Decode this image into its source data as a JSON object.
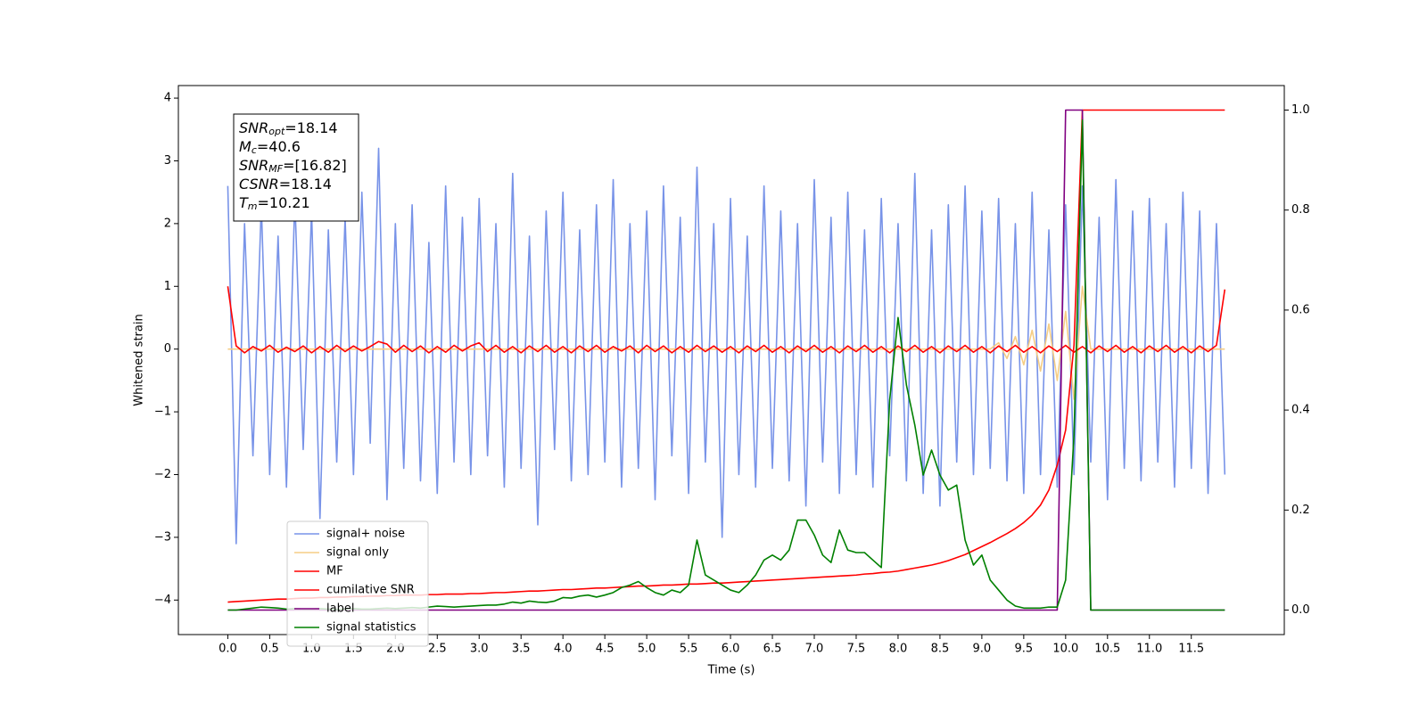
{
  "chart_data": {
    "type": "line",
    "xlabel": "Time (s)",
    "ylabel": "Whitened strain",
    "xlim": [
      -0.59,
      12.61
    ],
    "ylim": [
      -4.55,
      4.2
    ],
    "y2lim": [
      -0.049,
      1.049
    ],
    "xticks": [
      {
        "value": 0,
        "label": "0.0"
      },
      0.5,
      {
        "value": 1,
        "label": "1.0"
      },
      1.5,
      {
        "value": 2,
        "label": "2.0"
      },
      2.5,
      {
        "value": 3,
        "label": "3.0"
      },
      3.5,
      {
        "value": 4,
        "label": "4.0"
      },
      4.5,
      {
        "value": 5,
        "label": "5.0"
      },
      5.5,
      {
        "value": 6,
        "label": "6.0"
      },
      6.5,
      {
        "value": 7,
        "label": "7.0"
      },
      7.5,
      {
        "value": 8,
        "label": "8.0"
      },
      8.5,
      {
        "value": 9,
        "label": "9.0"
      },
      9.5,
      {
        "value": 10,
        "label": "10.0"
      },
      10.5,
      {
        "value": 11,
        "label": "11.0"
      },
      11.5
    ],
    "yticks": [
      {
        "value": -4,
        "label": "−4"
      },
      {
        "value": -3,
        "label": "−3"
      },
      {
        "value": -2,
        "label": "−2"
      },
      {
        "value": -1,
        "label": "−1"
      },
      0,
      1,
      2,
      3,
      4
    ],
    "y2ticks": [
      {
        "value": 0,
        "label": "0.0"
      },
      0.2,
      0.4,
      0.6,
      0.8,
      {
        "value": 1,
        "label": "1.0"
      }
    ],
    "grid": false,
    "legend": "lower left",
    "annotations": [
      {
        "symbol": "SNR",
        "subscript": "opt",
        "text": "=18.14"
      },
      {
        "symbol": "M",
        "subscript": "c",
        "text": "=40.6"
      },
      {
        "symbol": "SNR",
        "subscript": "MF",
        "text": "=[16.82]"
      },
      {
        "symbol": "CSNR",
        "text": "=18.14"
      },
      {
        "symbol": "T",
        "subscript": "m",
        "text": "=10.21"
      }
    ],
    "x": [
      0,
      0.1,
      0.2,
      0.3,
      0.4,
      0.5,
      0.6,
      0.7,
      0.8,
      0.9,
      1,
      1.1,
      1.2,
      1.3,
      1.4,
      1.5,
      1.6,
      1.7,
      1.8,
      1.9,
      2,
      2.1,
      2.2,
      2.3,
      2.4,
      2.5,
      2.6,
      2.7,
      2.8,
      2.9,
      3,
      3.1,
      3.2,
      3.3,
      3.4,
      3.5,
      3.6,
      3.7,
      3.8,
      3.9,
      4,
      4.1,
      4.2,
      4.3,
      4.4,
      4.5,
      4.6,
      4.7,
      4.8,
      4.9,
      5,
      5.1,
      5.2,
      5.3,
      5.4,
      5.5,
      5.6,
      5.7,
      5.8,
      5.9,
      6,
      6.1,
      6.2,
      6.3,
      6.4,
      6.5,
      6.6,
      6.7,
      6.8,
      6.9,
      7,
      7.1,
      7.2,
      7.3,
      7.4,
      7.5,
      7.6,
      7.7,
      7.8,
      7.9,
      8,
      8.1,
      8.2,
      8.3,
      8.4,
      8.5,
      8.6,
      8.7,
      8.8,
      8.9,
      9,
      9.1,
      9.2,
      9.3,
      9.4,
      9.5,
      9.6,
      9.7,
      9.8,
      9.9,
      10,
      10.1,
      10.2,
      10.3,
      10.4,
      10.5,
      10.6,
      10.7,
      10.8,
      10.9,
      11,
      11.1,
      11.2,
      11.3,
      11.4,
      11.5,
      11.6,
      11.7,
      11.8,
      11.9
    ],
    "series": [
      {
        "name": "signal+ noise",
        "color": "#7893e8",
        "values": [
          2.6,
          -3.1,
          2.0,
          -1.7,
          2.3,
          -2.0,
          1.8,
          -2.2,
          2.4,
          -1.6,
          2.2,
          -2.7,
          1.9,
          -1.8,
          2.1,
          -2.0,
          2.5,
          -1.5,
          3.2,
          -2.4,
          2.0,
          -1.9,
          2.3,
          -2.1,
          1.7,
          -2.3,
          2.6,
          -1.8,
          2.1,
          -2.0,
          2.4,
          -1.7,
          2.0,
          -2.2,
          2.8,
          -1.9,
          1.8,
          -2.8,
          2.2,
          -1.6,
          2.5,
          -2.1,
          1.9,
          -2.0,
          2.3,
          -1.8,
          2.7,
          -2.2,
          2.0,
          -1.9,
          2.2,
          -2.4,
          2.6,
          -1.7,
          2.1,
          -2.3,
          2.9,
          -1.8,
          2.0,
          -3.0,
          2.4,
          -2.0,
          1.8,
          -2.2,
          2.6,
          -1.9,
          2.2,
          -2.1,
          2.0,
          -2.5,
          2.7,
          -1.8,
          2.1,
          -2.3,
          2.5,
          -2.0,
          1.9,
          -2.2,
          2.4,
          -1.7,
          2.0,
          -2.1,
          2.8,
          -2.3,
          1.9,
          -2.5,
          2.3,
          -1.8,
          2.6,
          -2.0,
          2.2,
          -1.9,
          2.4,
          -2.1,
          2.0,
          -2.3,
          2.5,
          -2.0,
          1.9,
          -2.2,
          2.3,
          -2.0,
          2.6,
          -1.8,
          2.1,
          -2.4,
          2.7,
          -1.9,
          2.2,
          -2.1,
          2.4,
          -1.8,
          2.0,
          -2.2,
          2.5,
          -1.9,
          2.2,
          -2.3,
          2.0,
          -2.0
        ]
      },
      {
        "name": "signal only",
        "color": "#f5cd85",
        "values": [
          0,
          0,
          0,
          0,
          0,
          0,
          0,
          0,
          0,
          0,
          0,
          0,
          0,
          0,
          0,
          0,
          0,
          0,
          0,
          0,
          0,
          0,
          0,
          0,
          0,
          0,
          0,
          0,
          0,
          0,
          0,
          0,
          0,
          0,
          0,
          0,
          0,
          0,
          0,
          0,
          0,
          0,
          0,
          0,
          0,
          0,
          0,
          0,
          0,
          0,
          0,
          0,
          0,
          0,
          0,
          0,
          0,
          0,
          0,
          0,
          0,
          0,
          0,
          0,
          0,
          0,
          0,
          0,
          0,
          0,
          0,
          0,
          0,
          0,
          0,
          0,
          0,
          0,
          0,
          0,
          0,
          0,
          0,
          0,
          0,
          0,
          0,
          0,
          0,
          0,
          0,
          0,
          0.1,
          -0.15,
          0.2,
          -0.25,
          0.3,
          -0.35,
          0.4,
          -0.5,
          0.6,
          -0.8,
          1.0,
          0,
          0,
          0,
          0,
          0,
          0,
          0,
          0,
          0,
          0,
          0,
          0,
          0,
          0,
          0,
          0,
          0
        ]
      },
      {
        "name": "MF",
        "color": "#ff0000",
        "values": [
          1.0,
          0.05,
          -0.06,
          0.04,
          -0.03,
          0.06,
          -0.05,
          0.03,
          -0.04,
          0.05,
          -0.06,
          0.04,
          -0.05,
          0.06,
          -0.04,
          0.05,
          -0.03,
          0.04,
          0.12,
          0.08,
          -0.05,
          0.06,
          -0.04,
          0.05,
          -0.06,
          0.04,
          -0.05,
          0.06,
          -0.03,
          0.05,
          0.1,
          -0.04,
          0.06,
          -0.05,
          0.04,
          -0.06,
          0.05,
          -0.04,
          0.06,
          -0.05,
          0.04,
          -0.06,
          0.05,
          -0.04,
          0.06,
          -0.05,
          0.04,
          -0.03,
          0.05,
          -0.06,
          0.06,
          -0.04,
          0.05,
          -0.06,
          0.04,
          -0.05,
          0.06,
          -0.04,
          0.05,
          -0.05,
          0.04,
          -0.06,
          0.05,
          -0.04,
          0.06,
          -0.05,
          0.04,
          -0.06,
          0.05,
          -0.04,
          0.06,
          -0.05,
          0.04,
          -0.06,
          0.05,
          -0.04,
          0.06,
          -0.05,
          0.04,
          -0.06,
          0.05,
          -0.04,
          0.06,
          -0.05,
          0.04,
          -0.06,
          0.05,
          -0.04,
          0.06,
          -0.05,
          0.04,
          -0.06,
          0.05,
          -0.04,
          0.06,
          -0.05,
          0.04,
          -0.06,
          0.05,
          -0.04,
          0.06,
          -0.05,
          0.04,
          -0.06,
          0.05,
          -0.04,
          0.06,
          -0.05,
          0.04,
          -0.06,
          0.05,
          -0.04,
          0.06,
          -0.05,
          0.04,
          -0.06,
          0.05,
          -0.04,
          0.06,
          0.95
        ]
      },
      {
        "name": "cumilative SNR",
        "color": "#ff0000",
        "axis": "y2",
        "values": [
          0.016,
          0.017,
          0.018,
          0.019,
          0.02,
          0.021,
          0.022,
          0.022,
          0.023,
          0.024,
          0.024,
          0.025,
          0.025,
          0.026,
          0.026,
          0.027,
          0.027,
          0.028,
          0.028,
          0.029,
          0.029,
          0.03,
          0.03,
          0.03,
          0.031,
          0.031,
          0.032,
          0.032,
          0.032,
          0.033,
          0.033,
          0.034,
          0.035,
          0.035,
          0.036,
          0.037,
          0.038,
          0.038,
          0.039,
          0.04,
          0.041,
          0.041,
          0.042,
          0.043,
          0.044,
          0.044,
          0.045,
          0.046,
          0.047,
          0.048,
          0.048,
          0.049,
          0.05,
          0.05,
          0.051,
          0.052,
          0.052,
          0.053,
          0.054,
          0.054,
          0.055,
          0.056,
          0.057,
          0.058,
          0.059,
          0.06,
          0.061,
          0.062,
          0.063,
          0.064,
          0.065,
          0.066,
          0.067,
          0.068,
          0.069,
          0.07,
          0.072,
          0.073,
          0.075,
          0.076,
          0.078,
          0.081,
          0.084,
          0.087,
          0.09,
          0.094,
          0.099,
          0.105,
          0.111,
          0.119,
          0.127,
          0.135,
          0.144,
          0.153,
          0.163,
          0.175,
          0.19,
          0.21,
          0.24,
          0.29,
          0.36,
          0.53,
          1.0,
          1.0,
          1.0,
          1.0,
          1.0,
          1.0,
          1.0,
          1.0,
          1.0,
          1.0,
          1.0,
          1.0,
          1.0,
          1.0,
          1.0,
          1.0,
          1.0,
          1.0
        ]
      },
      {
        "name": "label",
        "color": "#800080",
        "axis": "y2",
        "values": [
          0,
          0,
          0,
          0,
          0,
          0,
          0,
          0,
          0,
          0,
          0,
          0,
          0,
          0,
          0,
          0,
          0,
          0,
          0,
          0,
          0,
          0,
          0,
          0,
          0,
          0,
          0,
          0,
          0,
          0,
          0,
          0,
          0,
          0,
          0,
          0,
          0,
          0,
          0,
          0,
          0,
          0,
          0,
          0,
          0,
          0,
          0,
          0,
          0,
          0,
          0,
          0,
          0,
          0,
          0,
          0,
          0,
          0,
          0,
          0,
          0,
          0,
          0,
          0,
          0,
          0,
          0,
          0,
          0,
          0,
          0,
          0,
          0,
          0,
          0,
          0,
          0,
          0,
          0,
          0,
          0,
          0,
          0,
          0,
          0,
          0,
          0,
          0,
          0,
          0,
          0,
          0,
          0,
          0,
          0,
          0,
          0,
          0,
          0,
          0,
          1,
          1,
          1,
          0,
          0,
          0,
          0,
          0,
          0,
          0,
          0,
          0,
          0,
          0,
          0,
          0,
          0,
          0,
          0,
          0
        ]
      },
      {
        "name": "signal statistics",
        "color": "#008000",
        "axis": "y2",
        "values": [
          0.0,
          0.0,
          0.002,
          0.004,
          0.006,
          0.005,
          0.004,
          0.002,
          0.003,
          0.002,
          0.002,
          0.003,
          0.002,
          0.001,
          0.002,
          0.003,
          0.002,
          0.002,
          0.003,
          0.004,
          0.003,
          0.004,
          0.005,
          0.004,
          0.006,
          0.008,
          0.007,
          0.006,
          0.007,
          0.008,
          0.009,
          0.01,
          0.01,
          0.012,
          0.016,
          0.014,
          0.018,
          0.016,
          0.015,
          0.018,
          0.025,
          0.024,
          0.028,
          0.03,
          0.026,
          0.03,
          0.035,
          0.045,
          0.05,
          0.057,
          0.045,
          0.035,
          0.03,
          0.04,
          0.035,
          0.05,
          0.14,
          0.07,
          0.06,
          0.05,
          0.04,
          0.035,
          0.05,
          0.07,
          0.1,
          0.11,
          0.1,
          0.12,
          0.18,
          0.18,
          0.15,
          0.11,
          0.095,
          0.16,
          0.12,
          0.115,
          0.115,
          0.1,
          0.085,
          0.42,
          0.585,
          0.45,
          0.37,
          0.27,
          0.32,
          0.27,
          0.24,
          0.25,
          0.14,
          0.09,
          0.11,
          0.06,
          0.04,
          0.02,
          0.008,
          0.004,
          0.004,
          0.004,
          0.006,
          0.006,
          0.06,
          0.35,
          0.98,
          0,
          0,
          0,
          0,
          0,
          0,
          0,
          0,
          0,
          0,
          0,
          0,
          0,
          0,
          0,
          0,
          0
        ]
      }
    ]
  }
}
